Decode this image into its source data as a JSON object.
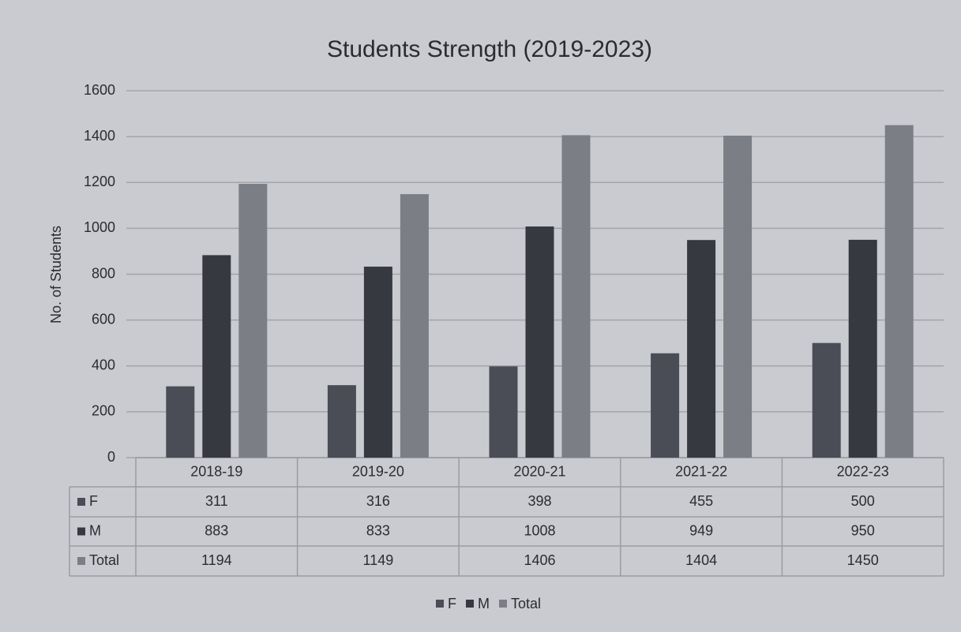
{
  "chart_data": {
    "type": "bar",
    "title": "Students Strength (2019-2023)",
    "ylabel": "No. of Students",
    "categories": [
      "2018-19",
      "2019-20",
      "2020-21",
      "2021-22",
      "2022-23"
    ],
    "series": [
      {
        "name": "F",
        "color": "#4a4d55",
        "values": [
          311,
          316,
          398,
          455,
          500
        ]
      },
      {
        "name": "M",
        "color": "#36393f",
        "values": [
          883,
          833,
          1008,
          949,
          950
        ]
      },
      {
        "name": "Total",
        "color": "#7b7e85",
        "values": [
          1194,
          1149,
          1406,
          1404,
          1450
        ]
      }
    ],
    "ylim": [
      0,
      1600
    ],
    "yticks": [
      0,
      200,
      400,
      600,
      800,
      1000,
      1200,
      1400,
      1600
    ],
    "grid": true,
    "legend": "bottom"
  }
}
